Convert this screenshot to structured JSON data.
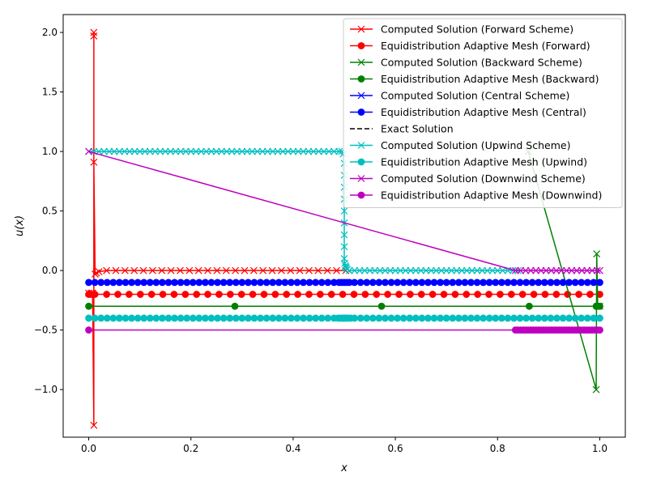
{
  "chart_data": {
    "type": "line",
    "title": "",
    "xlabel": "x",
    "ylabel": "u(x)",
    "xlim": [
      -0.05,
      1.05
    ],
    "ylim": [
      -1.4,
      2.15
    ],
    "xticks": [
      0.0,
      0.2,
      0.4,
      0.6,
      0.8,
      1.0
    ],
    "xtick_labels": [
      "0.0",
      "0.2",
      "0.4",
      "0.6",
      "0.8",
      "1.0"
    ],
    "yticks": [
      -1.0,
      -0.5,
      0.0,
      0.5,
      1.0,
      1.5,
      2.0
    ],
    "ytick_labels": [
      "−1.0",
      "−0.5",
      "0.0",
      "0.5",
      "1.0",
      "1.5",
      "2.0"
    ],
    "grid": false,
    "legend_position": "upper-right",
    "series": [
      {
        "name": "Computed Solution (Forward Scheme)",
        "color": "#ff0000",
        "marker": "x",
        "line": "solid",
        "x": [
          0.0,
          0.005,
          0.0075,
          0.01,
          0.01,
          0.01,
          0.01,
          0.0125,
          0.015,
          0.02,
          0.035,
          0.053,
          0.071,
          0.089,
          0.107,
          0.125,
          0.143,
          0.161,
          0.179,
          0.197,
          0.215,
          0.233,
          0.251,
          0.269,
          0.287,
          0.305,
          0.323,
          0.341,
          0.359,
          0.377,
          0.395,
          0.413,
          0.431,
          0.449,
          0.467,
          0.485,
          0.503
        ],
        "y": [
          -0.19,
          -0.19,
          -0.19,
          -1.3,
          2.0,
          1.97,
          0.91,
          -0.03,
          -0.02,
          -0.01,
          0.0,
          0.0,
          0.0,
          0.0,
          0.0,
          0.0,
          0.0,
          0.0,
          0.0,
          0.0,
          0.0,
          0.0,
          0.0,
          0.0,
          0.0,
          0.0,
          0.0,
          0.0,
          0.0,
          0.0,
          0.0,
          0.0,
          0.0,
          0.0,
          0.0,
          0.0,
          0.0
        ]
      },
      {
        "name": "Equidistribution Adaptive Mesh (Forward)",
        "color": "#ff0000",
        "marker": "o",
        "line": "solid",
        "x": [
          0.0,
          0.004,
          0.008,
          0.012,
          0.035,
          0.057,
          0.079,
          0.101,
          0.123,
          0.145,
          0.167,
          0.189,
          0.211,
          0.233,
          0.255,
          0.277,
          0.299,
          0.321,
          0.343,
          0.365,
          0.387,
          0.409,
          0.431,
          0.453,
          0.475,
          0.497,
          0.519,
          0.541,
          0.563,
          0.585,
          0.607,
          0.629,
          0.651,
          0.673,
          0.695,
          0.717,
          0.739,
          0.761,
          0.783,
          0.805,
          0.827,
          0.849,
          0.871,
          0.893,
          0.915,
          0.937,
          0.959,
          0.981,
          1.0
        ],
        "y": [
          -0.2,
          -0.2,
          -0.2,
          -0.2,
          -0.2,
          -0.2,
          -0.2,
          -0.2,
          -0.2,
          -0.2,
          -0.2,
          -0.2,
          -0.2,
          -0.2,
          -0.2,
          -0.2,
          -0.2,
          -0.2,
          -0.2,
          -0.2,
          -0.2,
          -0.2,
          -0.2,
          -0.2,
          -0.2,
          -0.2,
          -0.2,
          -0.2,
          -0.2,
          -0.2,
          -0.2,
          -0.2,
          -0.2,
          -0.2,
          -0.2,
          -0.2,
          -0.2,
          -0.2,
          -0.2,
          -0.2,
          -0.2,
          -0.2,
          -0.2,
          -0.2,
          -0.2,
          -0.2,
          -0.2,
          -0.2,
          -0.2
        ]
      },
      {
        "name": "Computed Solution (Backward Scheme)",
        "color": "#008000",
        "marker": "x",
        "line": "solid",
        "x": [
          0.86,
          0.993,
          0.994,
          0.996,
          0.997,
          1.0
        ],
        "y": [
          1.0,
          -1.0,
          0.14,
          -0.3,
          -0.3,
          -0.3
        ]
      },
      {
        "name": "Equidistribution Adaptive Mesh (Backward)",
        "color": "#008000",
        "marker": "o",
        "line": "solid",
        "x": [
          0.0,
          0.286,
          0.573,
          0.862,
          0.993,
          0.995,
          0.997,
          1.0
        ],
        "y": [
          -0.3,
          -0.3,
          -0.3,
          -0.3,
          -0.3,
          -0.3,
          -0.3,
          -0.3
        ]
      },
      {
        "name": "Computed Solution (Central Scheme)",
        "color": "#0000ff",
        "marker": "x",
        "line": "solid",
        "x": [],
        "y": []
      },
      {
        "name": "Equidistribution Adaptive Mesh (Central)",
        "color": "#0000ff",
        "marker": "o",
        "line": "solid",
        "x": [
          0.0,
          0.012,
          0.024,
          0.036,
          0.048,
          0.06,
          0.072,
          0.084,
          0.096,
          0.108,
          0.12,
          0.132,
          0.144,
          0.156,
          0.168,
          0.18,
          0.192,
          0.204,
          0.216,
          0.228,
          0.24,
          0.252,
          0.264,
          0.276,
          0.288,
          0.3,
          0.312,
          0.324,
          0.336,
          0.348,
          0.36,
          0.372,
          0.384,
          0.396,
          0.408,
          0.42,
          0.432,
          0.444,
          0.456,
          0.468,
          0.48,
          0.49,
          0.495,
          0.5,
          0.505,
          0.51,
          0.52,
          0.532,
          0.544,
          0.556,
          0.568,
          0.58,
          0.592,
          0.604,
          0.616,
          0.628,
          0.64,
          0.652,
          0.664,
          0.676,
          0.688,
          0.7,
          0.712,
          0.724,
          0.736,
          0.748,
          0.76,
          0.772,
          0.784,
          0.796,
          0.808,
          0.82,
          0.832,
          0.844,
          0.856,
          0.868,
          0.88,
          0.892,
          0.904,
          0.916,
          0.928,
          0.94,
          0.952,
          0.964,
          0.976,
          0.988,
          1.0
        ],
        "y": [
          -0.1,
          -0.1,
          -0.1,
          -0.1,
          -0.1,
          -0.1,
          -0.1,
          -0.1,
          -0.1,
          -0.1,
          -0.1,
          -0.1,
          -0.1,
          -0.1,
          -0.1,
          -0.1,
          -0.1,
          -0.1,
          -0.1,
          -0.1,
          -0.1,
          -0.1,
          -0.1,
          -0.1,
          -0.1,
          -0.1,
          -0.1,
          -0.1,
          -0.1,
          -0.1,
          -0.1,
          -0.1,
          -0.1,
          -0.1,
          -0.1,
          -0.1,
          -0.1,
          -0.1,
          -0.1,
          -0.1,
          -0.1,
          -0.1,
          -0.1,
          -0.1,
          -0.1,
          -0.1,
          -0.1,
          -0.1,
          -0.1,
          -0.1,
          -0.1,
          -0.1,
          -0.1,
          -0.1,
          -0.1,
          -0.1,
          -0.1,
          -0.1,
          -0.1,
          -0.1,
          -0.1,
          -0.1,
          -0.1,
          -0.1,
          -0.1,
          -0.1,
          -0.1,
          -0.1,
          -0.1,
          -0.1,
          -0.1,
          -0.1,
          -0.1,
          -0.1,
          -0.1,
          -0.1,
          -0.1,
          -0.1,
          -0.1,
          -0.1,
          -0.1,
          -0.1,
          -0.1,
          -0.1,
          -0.1,
          -0.1,
          -0.1
        ]
      },
      {
        "name": "Exact Solution",
        "color": "#000000",
        "marker": "none",
        "line": "dashed",
        "x": [],
        "y": []
      },
      {
        "name": "Computed Solution (Upwind Scheme)",
        "color": "#00bfbf",
        "marker": "x",
        "line": "solid",
        "x": [
          0.0,
          0.01,
          0.02,
          0.03,
          0.04,
          0.05,
          0.06,
          0.07,
          0.08,
          0.09,
          0.1,
          0.11,
          0.12,
          0.13,
          0.14,
          0.15,
          0.16,
          0.17,
          0.18,
          0.19,
          0.2,
          0.21,
          0.22,
          0.23,
          0.24,
          0.25,
          0.26,
          0.27,
          0.28,
          0.29,
          0.3,
          0.31,
          0.32,
          0.33,
          0.34,
          0.35,
          0.36,
          0.37,
          0.38,
          0.39,
          0.4,
          0.41,
          0.42,
          0.43,
          0.44,
          0.45,
          0.46,
          0.47,
          0.48,
          0.49,
          0.495,
          0.498,
          0.5,
          0.5,
          0.5,
          0.5,
          0.5,
          0.5,
          0.5,
          0.5,
          0.5,
          0.501,
          0.502,
          0.503,
          0.504,
          0.506,
          0.51,
          0.52,
          0.53,
          0.54,
          0.55,
          0.56,
          0.57,
          0.58,
          0.59,
          0.6,
          0.61,
          0.62,
          0.63,
          0.64,
          0.65,
          0.66,
          0.67,
          0.68,
          0.69,
          0.7,
          0.71,
          0.72,
          0.73,
          0.74,
          0.75,
          0.76,
          0.77,
          0.78,
          0.79,
          0.8,
          0.81,
          0.82,
          0.83,
          0.84
        ],
        "y": [
          1.0,
          1.0,
          1.0,
          1.0,
          1.0,
          1.0,
          1.0,
          1.0,
          1.0,
          1.0,
          1.0,
          1.0,
          1.0,
          1.0,
          1.0,
          1.0,
          1.0,
          1.0,
          1.0,
          1.0,
          1.0,
          1.0,
          1.0,
          1.0,
          1.0,
          1.0,
          1.0,
          1.0,
          1.0,
          1.0,
          1.0,
          1.0,
          1.0,
          1.0,
          1.0,
          1.0,
          1.0,
          1.0,
          1.0,
          1.0,
          1.0,
          1.0,
          1.0,
          1.0,
          1.0,
          1.0,
          1.0,
          1.0,
          1.0,
          1.0,
          1.0,
          0.98,
          0.9,
          0.8,
          0.7,
          0.6,
          0.5,
          0.4,
          0.3,
          0.2,
          0.1,
          0.06,
          0.04,
          0.03,
          0.02,
          0.01,
          0.0,
          0.0,
          0.0,
          0.0,
          0.0,
          0.0,
          0.0,
          0.0,
          0.0,
          0.0,
          0.0,
          0.0,
          0.0,
          0.0,
          0.0,
          0.0,
          0.0,
          0.0,
          0.0,
          0.0,
          0.0,
          0.0,
          0.0,
          0.0,
          0.0,
          0.0,
          0.0,
          0.0,
          0.0,
          0.0,
          0.0,
          0.0,
          0.0,
          0.0
        ]
      },
      {
        "name": "Equidistribution Adaptive Mesh (Upwind)",
        "color": "#00bfbf",
        "marker": "o",
        "line": "solid",
        "x": [
          0.0,
          0.012,
          0.024,
          0.036,
          0.048,
          0.06,
          0.072,
          0.084,
          0.096,
          0.108,
          0.12,
          0.132,
          0.144,
          0.156,
          0.168,
          0.18,
          0.192,
          0.204,
          0.216,
          0.228,
          0.24,
          0.252,
          0.264,
          0.276,
          0.288,
          0.3,
          0.312,
          0.324,
          0.336,
          0.348,
          0.36,
          0.372,
          0.384,
          0.396,
          0.408,
          0.42,
          0.432,
          0.444,
          0.456,
          0.468,
          0.48,
          0.488,
          0.493,
          0.497,
          0.5,
          0.503,
          0.507,
          0.512,
          0.52,
          0.532,
          0.544,
          0.556,
          0.568,
          0.58,
          0.592,
          0.604,
          0.616,
          0.628,
          0.64,
          0.652,
          0.664,
          0.676,
          0.688,
          0.7,
          0.712,
          0.724,
          0.736,
          0.748,
          0.76,
          0.772,
          0.784,
          0.796,
          0.808,
          0.82,
          0.832,
          0.844,
          0.856,
          0.868,
          0.88,
          0.892,
          0.904,
          0.916,
          0.928,
          0.94,
          0.952,
          0.964,
          0.976,
          0.988,
          1.0
        ],
        "y": [
          -0.4,
          -0.4,
          -0.4,
          -0.4,
          -0.4,
          -0.4,
          -0.4,
          -0.4,
          -0.4,
          -0.4,
          -0.4,
          -0.4,
          -0.4,
          -0.4,
          -0.4,
          -0.4,
          -0.4,
          -0.4,
          -0.4,
          -0.4,
          -0.4,
          -0.4,
          -0.4,
          -0.4,
          -0.4,
          -0.4,
          -0.4,
          -0.4,
          -0.4,
          -0.4,
          -0.4,
          -0.4,
          -0.4,
          -0.4,
          -0.4,
          -0.4,
          -0.4,
          -0.4,
          -0.4,
          -0.4,
          -0.4,
          -0.4,
          -0.4,
          -0.4,
          -0.4,
          -0.4,
          -0.4,
          -0.4,
          -0.4,
          -0.4,
          -0.4,
          -0.4,
          -0.4,
          -0.4,
          -0.4,
          -0.4,
          -0.4,
          -0.4,
          -0.4,
          -0.4,
          -0.4,
          -0.4,
          -0.4,
          -0.4,
          -0.4,
          -0.4,
          -0.4,
          -0.4,
          -0.4,
          -0.4,
          -0.4,
          -0.4,
          -0.4,
          -0.4,
          -0.4,
          -0.4,
          -0.4,
          -0.4,
          -0.4,
          -0.4,
          -0.4,
          -0.4,
          -0.4,
          -0.4,
          -0.4,
          -0.4,
          -0.4,
          -0.4,
          -0.4
        ]
      },
      {
        "name": "Computed Solution (Downwind Scheme)",
        "color": "#bf00bf",
        "marker": "x",
        "line": "solid",
        "x": [
          0.0,
          0.835,
          0.845,
          0.855,
          0.865,
          0.875,
          0.885,
          0.895,
          0.905,
          0.915,
          0.925,
          0.935,
          0.945,
          0.955,
          0.965,
          0.975,
          0.985,
          0.995,
          1.0
        ],
        "y": [
          1.0,
          0.0,
          0.0,
          0.0,
          0.0,
          0.0,
          0.0,
          0.0,
          0.0,
          0.0,
          0.0,
          0.0,
          0.0,
          0.0,
          0.0,
          0.0,
          0.0,
          0.0,
          0.0
        ]
      },
      {
        "name": "Equidistribution Adaptive Mesh (Downwind)",
        "color": "#bf00bf",
        "marker": "o",
        "line": "solid",
        "x": [
          0.0,
          0.835,
          0.84,
          0.845,
          0.85,
          0.855,
          0.86,
          0.865,
          0.87,
          0.875,
          0.88,
          0.885,
          0.89,
          0.895,
          0.9,
          0.905,
          0.91,
          0.915,
          0.92,
          0.925,
          0.93,
          0.935,
          0.94,
          0.945,
          0.95,
          0.955,
          0.96,
          0.965,
          0.97,
          0.975,
          0.98,
          0.985,
          0.99,
          0.995,
          1.0
        ],
        "y": [
          -0.5,
          -0.5,
          -0.5,
          -0.5,
          -0.5,
          -0.5,
          -0.5,
          -0.5,
          -0.5,
          -0.5,
          -0.5,
          -0.5,
          -0.5,
          -0.5,
          -0.5,
          -0.5,
          -0.5,
          -0.5,
          -0.5,
          -0.5,
          -0.5,
          -0.5,
          -0.5,
          -0.5,
          -0.5,
          -0.5,
          -0.5,
          -0.5,
          -0.5,
          -0.5,
          -0.5,
          -0.5,
          -0.5,
          -0.5,
          -0.5
        ]
      }
    ]
  }
}
